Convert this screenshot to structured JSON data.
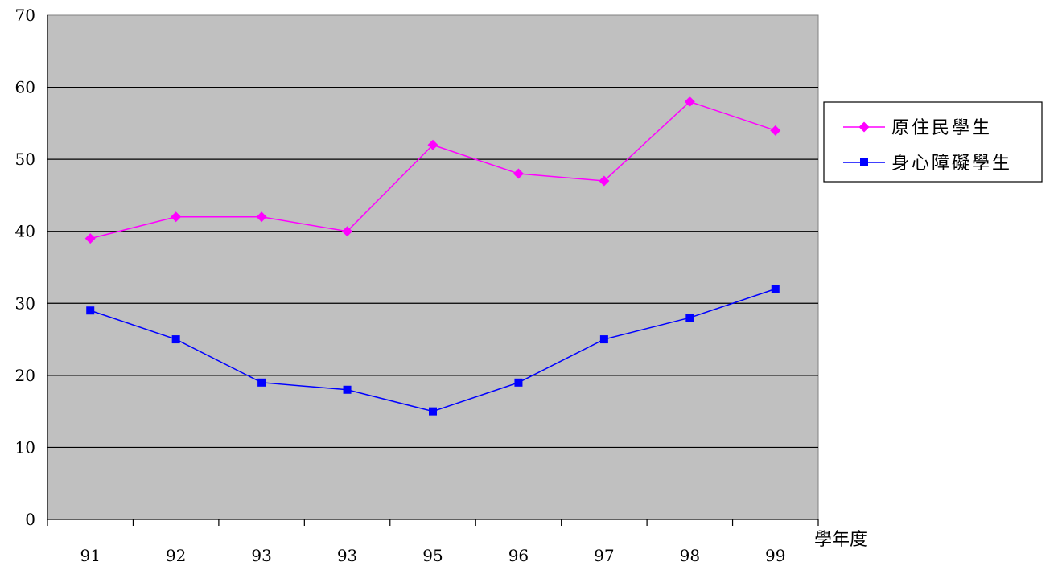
{
  "chart_data": {
    "type": "line",
    "title": "",
    "xlabel": "學年度",
    "ylabel": "",
    "categories": [
      "91",
      "92",
      "93",
      "93",
      "95",
      "96",
      "97",
      "98",
      "99"
    ],
    "ylim": [
      0,
      70
    ],
    "yticks": [
      "0",
      "10",
      "20",
      "30",
      "40",
      "50",
      "60",
      "70"
    ],
    "grid": true,
    "legend_position": "right",
    "plot_background": "#c0c0c0",
    "series": [
      {
        "name": "原住民學生",
        "color": "#ff00ff",
        "marker": "diamond",
        "values": [
          39,
          42,
          42,
          40,
          52,
          48,
          47,
          58,
          54
        ]
      },
      {
        "name": "身心障礙學生",
        "color": "#0000ff",
        "marker": "square",
        "values": [
          29,
          25,
          19,
          18,
          15,
          19,
          25,
          28,
          32
        ]
      }
    ]
  }
}
